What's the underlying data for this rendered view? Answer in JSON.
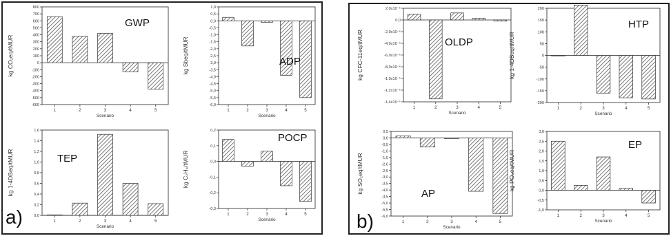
{
  "panels": [
    {
      "id": "a",
      "label": "a)"
    },
    {
      "id": "b",
      "label": "b)"
    }
  ],
  "chart_data": [
    {
      "panel": "a",
      "type": "bar",
      "title": "GWP",
      "ylabel": "kg CO₂eq/tMUR",
      "xlabel": "Scenario",
      "categories": [
        "1",
        "2",
        "3",
        "4",
        "5"
      ],
      "values": [
        660,
        380,
        420,
        -130,
        -380
      ],
      "ylim": [
        -600,
        800
      ],
      "yticks": [
        "-600",
        "-500",
        "-400",
        "-300",
        "-200",
        "-100",
        "0",
        "100",
        "200",
        "300",
        "400",
        "500",
        "600",
        "700",
        "800"
      ]
    },
    {
      "panel": "a",
      "type": "bar",
      "title": "ADP",
      "ylabel": "kg Sbeq/tMUR",
      "xlabel": "Scenario",
      "categories": [
        "1",
        "2",
        "3",
        "4",
        "5"
      ],
      "values": [
        0.25,
        -1.8,
        -0.1,
        -3.9,
        -5.5
      ],
      "ylim": [
        -6,
        1
      ],
      "yticks": [
        "-6,0",
        "-5,5",
        "-5,0",
        "-4,5",
        "-4,0",
        "-3,5",
        "-3,0",
        "-2,5",
        "-2,0",
        "-1,5",
        "-1,0",
        "-0,5",
        "0,0",
        "0,5",
        "1,0"
      ]
    },
    {
      "panel": "a",
      "type": "bar",
      "title": "TEP",
      "ylabel": "kg 1-4DBeq/tMUR",
      "xlabel": "Scenario",
      "categories": [
        "1",
        "2",
        "3",
        "4",
        "5"
      ],
      "values": [
        0.01,
        0.23,
        1.52,
        0.6,
        0.22
      ],
      "ylim": [
        0,
        1.6
      ],
      "yticks": [
        "0,0",
        "0,2",
        "0,4",
        "0,6",
        "0,8",
        "1,0",
        "1,2",
        "1,4",
        "1,6"
      ]
    },
    {
      "panel": "a",
      "type": "bar",
      "title": "POCP",
      "ylabel": "kg C₂H₄/tMUR",
      "xlabel": "Scenario",
      "categories": [
        "1",
        "2",
        "3",
        "4",
        "5"
      ],
      "values": [
        0.14,
        -0.03,
        0.065,
        -0.155,
        -0.255
      ],
      "ylim": [
        -0.3,
        0.2
      ],
      "yticks": [
        "-0,3",
        "-0,2",
        "-0,1",
        "0,0",
        "0,1",
        "0,2"
      ]
    },
    {
      "panel": "b",
      "type": "bar",
      "title": "OLDP",
      "ylabel": "kg CFC-11eq/tMUR",
      "xlabel": "Scenario",
      "categories": [
        "1",
        "2",
        "3",
        "4",
        "5"
      ],
      "values": [
        1e-06,
        -1.35e-05,
        1.2e-06,
        3e-07,
        -2e-07
      ],
      "ylim": [
        -1.4e-05,
        2e-06
      ],
      "yticks": [
        "-1,4x10⁻⁵",
        "-1,2x10⁻⁵",
        "-1,0x10⁻⁵",
        "-8,0x10⁻⁶",
        "-6,0x10⁻⁶",
        "-4,0x10⁻⁶",
        "-2,0x10⁻⁶",
        "0,0",
        "2,0x10⁻⁶"
      ]
    },
    {
      "panel": "b",
      "type": "bar",
      "title": "HTP",
      "ylabel": "kg 1-4DBeq/tMUR",
      "xlabel": "Scenario",
      "categories": [
        "1",
        "2",
        "3",
        "4",
        "5"
      ],
      "values": [
        -2,
        213,
        -160,
        -180,
        -185
      ],
      "ylim": [
        -200,
        200
      ],
      "yticks": [
        "-200",
        "-150",
        "-100",
        "-50",
        "0",
        "50",
        "100",
        "150",
        "200"
      ]
    },
    {
      "panel": "b",
      "type": "bar",
      "title": "AP",
      "ylabel": "kg SO₂eq/tMUR",
      "xlabel": "Scenario",
      "categories": [
        "1",
        "2",
        "3",
        "4",
        "5"
      ],
      "values": [
        0.15,
        -0.7,
        -0.05,
        -4.1,
        -5.8
      ],
      "ylim": [
        -6.0,
        0.5
      ],
      "yticks": [
        "-6,0",
        "-5,5",
        "-5,0",
        "-4,5",
        "-4,0",
        "-3,5",
        "-3,0",
        "-2,5",
        "-2,0",
        "-1,5",
        "-1,0",
        "-0,5",
        "0,0",
        "0,5"
      ]
    },
    {
      "panel": "b",
      "type": "bar",
      "title": "EP",
      "ylabel": "kg PO₄eq/tMUR",
      "xlabel": "Scenario",
      "categories": [
        "1",
        "2",
        "3",
        "4",
        "5"
      ],
      "values": [
        2.5,
        0.25,
        1.7,
        0.1,
        -0.65
      ],
      "ylim": [
        -1.0,
        3.0
      ],
      "yticks": [
        "-1,0",
        "-0,5",
        "0,0",
        "0,5",
        "1,0",
        "1,5",
        "2,0",
        "2,5",
        "3,0"
      ]
    }
  ]
}
